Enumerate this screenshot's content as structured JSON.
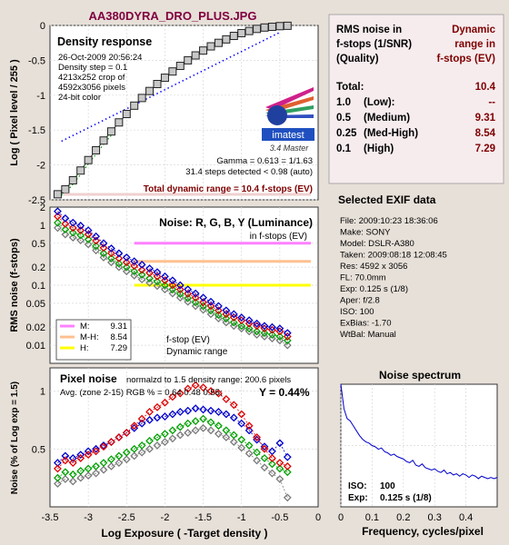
{
  "figure_title": "AA380DYRA_DRO_PLUS.JPG",
  "colors": {
    "background": "#e7e0d8",
    "plot_bg": "#ffffff",
    "red": "#dd0000",
    "green": "#00a000",
    "blue": "#0000cc",
    "gray": "#7a7a7a",
    "dark_red": "#800000",
    "spectrum": "#0000cc",
    "title": "#800040",
    "pink": "#ff80ff",
    "peach": "#ffc090",
    "yellow": "#ffff00"
  },
  "density_panel": {
    "title": "Density response",
    "info": [
      "26-Oct-2009 20:56:24",
      "Density step = 0.1",
      "4213x252 crop of",
      "4592x3056 pixels",
      "24-bit color"
    ],
    "gamma": "Gamma = 0.613 = 1/1.63",
    "steps": "31.4 steps detected < 0.98 (auto)",
    "total_dr": "Total dynamic range = 10.4 f-stops (EV)",
    "logo": "imatest",
    "logo_sub": "3.4  Master",
    "ylabel": "Log ( Pixel level / 255 )"
  },
  "noise_panel": {
    "title": "Noise: R, G, B, Y (Luminance)",
    "subtitle": "in f-stops (EV)",
    "ylabel": "RMS noise (f-stops)",
    "legend": [
      {
        "label": "M:",
        "value": "9.31",
        "color": "#ff80ff"
      },
      {
        "label": "M-H:",
        "value": "8.54",
        "color": "#ffc090"
      },
      {
        "label": "H:",
        "value": "7.29",
        "color": "#ffff00"
      }
    ],
    "fstop_label": "f-stop (EV)",
    "dr_label": "Dynamic range"
  },
  "pixel_panel": {
    "title": "Pixel noise",
    "normalized": "normalzd to 1.5 density range: 200.6 pixels",
    "avg_line": "Avg. (zone 2-15) RGB % = 0.64  0.48  0.55;",
    "y_value": "Y = 0.44%",
    "ylabel": "Noise (% of Log exp = 1.5)",
    "xlabel": "Log Exposure ( -Target density )"
  },
  "rms_table": {
    "header_left": [
      "RMS noise in",
      "f-stops (1/SNR)",
      "(Quality)"
    ],
    "header_right": [
      "Dynamic",
      "range in",
      "f-stops (EV)"
    ],
    "rows": [
      {
        "label": "Total:",
        "quality": "",
        "value": "10.4"
      },
      {
        "label": "1.0",
        "quality": "(Low):",
        "value": "--"
      },
      {
        "label": "0.5",
        "quality": "(Medium)",
        "value": "9.31"
      },
      {
        "label": "0.25",
        "quality": "(Med-High)",
        "value": "8.54"
      },
      {
        "label": "0.1",
        "quality": "(High)",
        "value": "7.29"
      }
    ]
  },
  "exif": {
    "title": "Selected EXIF data",
    "lines": [
      "File:  2009:10:23 18:36:06",
      "Make:  SONY",
      "Model: DSLR-A380",
      "Taken:  2009:08:18 12:08:45",
      "Res:   4592 x 3056",
      "FL:  70.0mm",
      "Exp:  0.125 s  (1/8)",
      "Aper:  f/2.8",
      "ISO:   100",
      "ExBias: -1.70",
      "WtBal: Manual"
    ]
  },
  "spectrum_panel": {
    "title": "Noise spectrum",
    "xlabel": "Frequency, cycles/pixel",
    "iso_label": "ISO:",
    "iso_value": "100",
    "exp_label": "Exp:",
    "exp_value": "0.125 s   (1/8)"
  },
  "chart_data": [
    {
      "type": "scatter",
      "title": "Density response",
      "ylabel": "Log ( Pixel level / 255 )",
      "xlim": [
        -3.5,
        0
      ],
      "ylim": [
        -2.5,
        0
      ],
      "yticks": [
        -2.5,
        -2,
        -1.5,
        -1,
        -0.5,
        0
      ],
      "series": [
        {
          "x": [
            -3.4,
            -3.3,
            -3.2,
            -3.1,
            -3.0,
            -2.9,
            -2.8,
            -2.7,
            -2.6,
            -2.5,
            -2.4,
            -2.3,
            -2.2,
            -2.1,
            -2.0,
            -1.9,
            -1.8,
            -1.7,
            -1.6,
            -1.5,
            -1.4,
            -1.3,
            -1.2,
            -1.1,
            -1.0,
            -0.9,
            -0.8,
            -0.7,
            -0.6,
            -0.5,
            -0.4
          ],
          "y": [
            -2.42,
            -2.35,
            -2.22,
            -2.08,
            -1.93,
            -1.79,
            -1.65,
            -1.52,
            -1.39,
            -1.27,
            -1.15,
            -1.04,
            -0.94,
            -0.84,
            -0.75,
            -0.66,
            -0.58,
            -0.5,
            -0.43,
            -0.36,
            -0.3,
            -0.25,
            -0.2,
            -0.15,
            -0.11,
            -0.08,
            -0.05,
            -0.03,
            -0.02,
            -0.01,
            -0.005
          ]
        }
      ],
      "fit_line": {
        "x": [
          -3.35,
          -0.5
        ],
        "y": [
          -1.66,
          -0.1
        ]
      }
    },
    {
      "type": "line",
      "title": "Noise: R, G, B, Y (Luminance)",
      "ylabel": "RMS noise (f-stops)",
      "yscale": "log",
      "ylim": [
        0.005,
        2
      ],
      "yticks": [
        0.01,
        0.02,
        0.05,
        0.1,
        0.2,
        0.5,
        1,
        2
      ],
      "x": [
        -3.4,
        -3.3,
        -3.2,
        -3.1,
        -3.0,
        -2.9,
        -2.8,
        -2.7,
        -2.6,
        -2.5,
        -2.4,
        -2.3,
        -2.2,
        -2.1,
        -2.0,
        -1.9,
        -1.8,
        -1.7,
        -1.6,
        -1.5,
        -1.4,
        -1.3,
        -1.2,
        -1.1,
        -1.0,
        -0.9,
        -0.8,
        -0.7,
        -0.6,
        -0.5,
        -0.4
      ],
      "series": [
        {
          "name": "R",
          "color": "#dd0000",
          "values": [
            1.4,
            1.05,
            0.9,
            0.82,
            0.7,
            0.55,
            0.42,
            0.34,
            0.28,
            0.24,
            0.21,
            0.18,
            0.16,
            0.14,
            0.12,
            0.1,
            0.085,
            0.072,
            0.062,
            0.052,
            0.045,
            0.038,
            0.033,
            0.029,
            0.026,
            0.023,
            0.021,
            0.019,
            0.018,
            0.017,
            0.014
          ]
        },
        {
          "name": "G",
          "color": "#00a000",
          "values": [
            1.1,
            0.85,
            0.75,
            0.68,
            0.58,
            0.45,
            0.34,
            0.28,
            0.23,
            0.2,
            0.17,
            0.15,
            0.13,
            0.115,
            0.1,
            0.085,
            0.072,
            0.061,
            0.052,
            0.045,
            0.038,
            0.032,
            0.028,
            0.024,
            0.021,
            0.019,
            0.017,
            0.016,
            0.015,
            0.014,
            0.012
          ]
        },
        {
          "name": "B",
          "color": "#0000cc",
          "values": [
            1.7,
            1.3,
            1.1,
            0.98,
            0.82,
            0.65,
            0.5,
            0.41,
            0.34,
            0.29,
            0.25,
            0.22,
            0.19,
            0.165,
            0.14,
            0.12,
            0.1,
            0.085,
            0.073,
            0.062,
            0.053,
            0.045,
            0.038,
            0.033,
            0.029,
            0.026,
            0.023,
            0.021,
            0.02,
            0.019,
            0.016
          ]
        },
        {
          "name": "Y",
          "color": "#7a7a7a",
          "values": [
            0.9,
            0.7,
            0.62,
            0.56,
            0.48,
            0.38,
            0.29,
            0.24,
            0.2,
            0.17,
            0.145,
            0.125,
            0.11,
            0.097,
            0.085,
            0.073,
            0.062,
            0.053,
            0.045,
            0.039,
            0.033,
            0.028,
            0.024,
            0.021,
            0.019,
            0.017,
            0.015,
            0.014,
            0.013,
            0.012,
            0.01
          ]
        }
      ],
      "thresholds": [
        {
          "label": "M",
          "value": 0.5,
          "color": "#ff80ff"
        },
        {
          "label": "M-H",
          "value": 0.25,
          "color": "#ffc090"
        },
        {
          "label": "H",
          "value": 0.1,
          "color": "#ffff00"
        }
      ]
    },
    {
      "type": "line",
      "title": "Pixel noise",
      "xlabel": "Log Exposure ( -Target density )",
      "ylabel": "Noise (% of Log exp = 1.5)",
      "xlim": [
        -3.5,
        0
      ],
      "ylim": [
        0,
        1.2
      ],
      "xticks": [
        -3.5,
        -3,
        -2.5,
        -2,
        -1.5,
        -1,
        -0.5,
        0
      ],
      "yticks": [
        0.5,
        1
      ],
      "x": [
        -3.4,
        -3.3,
        -3.2,
        -3.1,
        -3.0,
        -2.9,
        -2.8,
        -2.7,
        -2.6,
        -2.5,
        -2.4,
        -2.3,
        -2.2,
        -2.1,
        -2.0,
        -1.9,
        -1.8,
        -1.7,
        -1.6,
        -1.5,
        -1.4,
        -1.3,
        -1.2,
        -1.1,
        -1.0,
        -0.9,
        -0.8,
        -0.7,
        -0.6,
        -0.5,
        -0.4
      ],
      "series": [
        {
          "name": "R",
          "color": "#dd0000",
          "values": [
            0.33,
            0.4,
            0.38,
            0.42,
            0.45,
            0.48,
            0.52,
            0.56,
            0.6,
            0.64,
            0.7,
            0.76,
            0.82,
            0.86,
            0.9,
            0.95,
            0.98,
            1.02,
            1.05,
            1.03,
            1.0,
            0.98,
            0.93,
            0.88,
            0.8,
            0.7,
            0.6,
            0.5,
            0.42,
            0.38,
            0.35
          ]
        },
        {
          "name": "G",
          "color": "#00a000",
          "values": [
            0.25,
            0.3,
            0.28,
            0.31,
            0.33,
            0.35,
            0.38,
            0.41,
            0.44,
            0.47,
            0.5,
            0.53,
            0.57,
            0.6,
            0.63,
            0.66,
            0.69,
            0.72,
            0.74,
            0.76,
            0.73,
            0.7,
            0.66,
            0.62,
            0.58,
            0.53,
            0.47,
            0.42,
            0.37,
            0.33,
            0.3
          ]
        },
        {
          "name": "B",
          "color": "#0000cc",
          "values": [
            0.38,
            0.44,
            0.42,
            0.45,
            0.48,
            0.5,
            0.53,
            0.56,
            0.6,
            0.64,
            0.68,
            0.72,
            0.75,
            0.77,
            0.78,
            0.8,
            0.82,
            0.83,
            0.85,
            0.84,
            0.83,
            0.82,
            0.8,
            0.77,
            0.72,
            0.66,
            0.58,
            0.52,
            0.48,
            0.55,
            0.43
          ]
        },
        {
          "name": "Y",
          "color": "#7a7a7a",
          "values": [
            0.2,
            0.24,
            0.22,
            0.25,
            0.27,
            0.29,
            0.32,
            0.35,
            0.38,
            0.41,
            0.44,
            0.47,
            0.5,
            0.53,
            0.56,
            0.59,
            0.62,
            0.64,
            0.66,
            0.68,
            0.66,
            0.63,
            0.6,
            0.56,
            0.51,
            0.46,
            0.4,
            0.34,
            0.29,
            0.24,
            0.08
          ]
        }
      ]
    },
    {
      "type": "line",
      "title": "Noise spectrum",
      "xlabel": "Frequency, cycles/pixel",
      "xlim": [
        0,
        0.5
      ],
      "ylim": [
        0,
        1
      ],
      "xticks": [
        0,
        0.1,
        0.2,
        0.3,
        0.4
      ],
      "yticks": [
        0,
        0.5,
        1
      ],
      "series": [
        {
          "name": "Y",
          "color": "#0000cc",
          "x": [
            0,
            0.01,
            0.02,
            0.03,
            0.04,
            0.05,
            0.06,
            0.07,
            0.08,
            0.09,
            0.1,
            0.11,
            0.12,
            0.13,
            0.14,
            0.15,
            0.16,
            0.17,
            0.18,
            0.19,
            0.2,
            0.21,
            0.22,
            0.23,
            0.24,
            0.25,
            0.26,
            0.27,
            0.28,
            0.29,
            0.3,
            0.31,
            0.32,
            0.33,
            0.34,
            0.35,
            0.36,
            0.37,
            0.38,
            0.39,
            0.4,
            0.41,
            0.42,
            0.43,
            0.44,
            0.45,
            0.46,
            0.47,
            0.48,
            0.49,
            0.5
          ],
          "values": [
            1.0,
            0.8,
            0.72,
            0.7,
            0.66,
            0.62,
            0.58,
            0.55,
            0.53,
            0.52,
            0.5,
            0.49,
            0.47,
            0.48,
            0.45,
            0.44,
            0.42,
            0.43,
            0.41,
            0.4,
            0.39,
            0.37,
            0.36,
            0.38,
            0.34,
            0.33,
            0.35,
            0.32,
            0.31,
            0.3,
            0.31,
            0.29,
            0.28,
            0.3,
            0.27,
            0.28,
            0.26,
            0.27,
            0.25,
            0.27,
            0.26,
            0.24,
            0.26,
            0.25,
            0.23,
            0.25,
            0.24,
            0.23,
            0.24,
            0.23,
            0.24
          ]
        }
      ]
    }
  ]
}
